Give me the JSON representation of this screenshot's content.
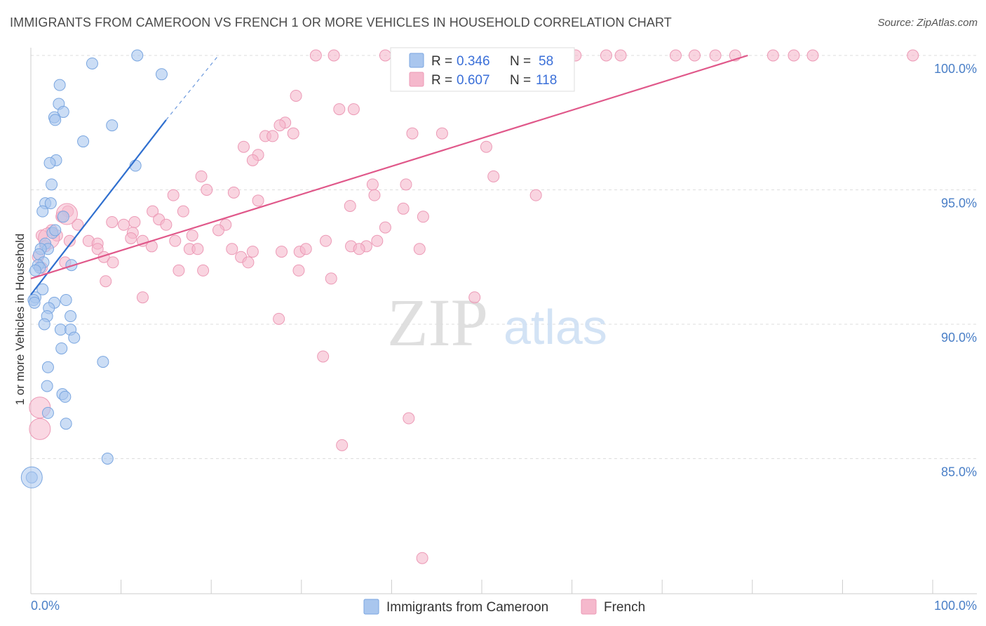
{
  "title": "IMMIGRANTS FROM CAMEROON VS FRENCH 1 OR MORE VEHICLES IN HOUSEHOLD CORRELATION CHART",
  "source": "Source: ZipAtlas.com",
  "watermark": {
    "zip": "ZIP",
    "atlas": "atlas"
  },
  "colors": {
    "blue_fill": "#a9c6ee",
    "blue_stroke": "#7aa6e0",
    "blue_line": "#2f6fcf",
    "pink_fill": "#f5b8cc",
    "pink_stroke": "#ec9ab6",
    "pink_line": "#e0588a",
    "grid": "#dddddd",
    "tick_label": "#4a7fc7"
  },
  "chart_data": {
    "type": "scatter",
    "title": "IMMIGRANTS FROM CAMEROON VS FRENCH 1 OR MORE VEHICLES IN HOUSEHOLD CORRELATION CHART",
    "xlabel": "",
    "ylabel": "1 or more Vehicles in Household",
    "xlim": [
      0,
      100
    ],
    "ylim": [
      80.5,
      100.8
    ],
    "y_ticks": [
      85.0,
      90.0,
      95.0,
      100.0
    ],
    "y_tick_labels": [
      "85.0%",
      "90.0%",
      "95.0%",
      "100.0%"
    ],
    "x_tick_labels": [
      "0.0%",
      "100.0%"
    ],
    "legend": {
      "rows": [
        {
          "r_label": "R =",
          "r_value": "0.346",
          "n_label": "N =",
          "n_value": "58"
        },
        {
          "r_label": "R =",
          "r_value": "0.607",
          "n_label": "N =",
          "n_value": "118"
        }
      ]
    },
    "series": [
      {
        "name": "Immigrants from Cameroon",
        "color": "#a9c6ee",
        "trend": {
          "x0": 0,
          "y0": 91.1,
          "x1": 15.0,
          "y1": 97.6,
          "dash_to_x": 20.8,
          "dash_to_y": 100.0
        },
        "points": [
          [
            11.8,
            100.0
          ],
          [
            6.8,
            99.7
          ],
          [
            14.5,
            99.3
          ],
          [
            3.2,
            98.9
          ],
          [
            3.1,
            98.2
          ],
          [
            3.6,
            97.9
          ],
          [
            2.6,
            97.7
          ],
          [
            2.7,
            97.6
          ],
          [
            9.0,
            97.4
          ],
          [
            5.8,
            96.8
          ],
          [
            2.8,
            96.1
          ],
          [
            2.1,
            96.0
          ],
          [
            11.6,
            95.9
          ],
          [
            2.3,
            95.2
          ],
          [
            1.6,
            94.5
          ],
          [
            2.2,
            94.5
          ],
          [
            1.3,
            94.2
          ],
          [
            3.6,
            94.0
          ],
          [
            2.4,
            93.4
          ],
          [
            2.7,
            93.5
          ],
          [
            1.6,
            93.0
          ],
          [
            1.9,
            92.8
          ],
          [
            1.1,
            92.8
          ],
          [
            0.9,
            92.6
          ],
          [
            1.4,
            92.3
          ],
          [
            0.8,
            92.2
          ],
          [
            4.5,
            92.2
          ],
          [
            1.0,
            92.1
          ],
          [
            0.5,
            92.0
          ],
          [
            1.3,
            91.3
          ],
          [
            0.5,
            91.0
          ],
          [
            0.3,
            90.9
          ],
          [
            0.4,
            90.8
          ],
          [
            2.6,
            90.8
          ],
          [
            3.9,
            90.9
          ],
          [
            2.0,
            90.6
          ],
          [
            1.8,
            90.3
          ],
          [
            4.4,
            90.3
          ],
          [
            1.5,
            90.0
          ],
          [
            3.3,
            89.8
          ],
          [
            4.4,
            89.8
          ],
          [
            4.8,
            89.5
          ],
          [
            3.4,
            89.1
          ],
          [
            8.0,
            88.6
          ],
          [
            1.9,
            88.4
          ],
          [
            1.8,
            87.7
          ],
          [
            3.5,
            87.4
          ],
          [
            3.8,
            87.3
          ],
          [
            1.9,
            86.7
          ],
          [
            3.9,
            86.3
          ],
          [
            8.5,
            85.0
          ],
          [
            0.1,
            84.3
          ]
        ],
        "large_points": [
          [
            0.1,
            84.3
          ]
        ]
      },
      {
        "name": "French",
        "color": "#f5b8cc",
        "trend": {
          "x0": 0,
          "y0": 91.7,
          "x1": 79.5,
          "y1": 100.0
        },
        "points": [
          [
            31.6,
            100.0
          ],
          [
            33.6,
            100.0
          ],
          [
            39.3,
            100.0
          ],
          [
            41.8,
            100.0
          ],
          [
            46.1,
            100.0
          ],
          [
            48.4,
            100.0
          ],
          [
            52.4,
            100.0
          ],
          [
            54.1,
            100.0
          ],
          [
            56.5,
            100.0
          ],
          [
            60.4,
            100.0
          ],
          [
            63.8,
            100.0
          ],
          [
            65.4,
            100.0
          ],
          [
            71.5,
            100.0
          ],
          [
            73.6,
            100.0
          ],
          [
            75.9,
            100.0
          ],
          [
            78.1,
            100.0
          ],
          [
            82.3,
            100.0
          ],
          [
            84.6,
            100.0
          ],
          [
            86.7,
            100.0
          ],
          [
            97.8,
            100.0
          ],
          [
            29.4,
            98.5
          ],
          [
            34.2,
            98.0
          ],
          [
            35.8,
            98.0
          ],
          [
            28.2,
            97.5
          ],
          [
            27.6,
            97.4
          ],
          [
            26.0,
            97.0
          ],
          [
            26.8,
            97.0
          ],
          [
            29.1,
            97.1
          ],
          [
            42.3,
            97.1
          ],
          [
            45.6,
            97.1
          ],
          [
            23.6,
            96.6
          ],
          [
            50.5,
            96.6
          ],
          [
            25.2,
            96.3
          ],
          [
            24.6,
            96.1
          ],
          [
            18.9,
            95.5
          ],
          [
            51.3,
            95.5
          ],
          [
            37.9,
            95.2
          ],
          [
            41.6,
            95.2
          ],
          [
            19.5,
            95.0
          ],
          [
            22.5,
            94.9
          ],
          [
            15.8,
            94.8
          ],
          [
            38.1,
            94.8
          ],
          [
            56.0,
            94.8
          ],
          [
            25.2,
            94.6
          ],
          [
            35.4,
            94.4
          ],
          [
            13.5,
            94.2
          ],
          [
            16.9,
            94.2
          ],
          [
            4.1,
            94.2
          ],
          [
            3.4,
            94.0
          ],
          [
            41.3,
            94.3
          ],
          [
            43.5,
            94.0
          ],
          [
            14.2,
            93.9
          ],
          [
            9.0,
            93.8
          ],
          [
            10.3,
            93.7
          ],
          [
            11.5,
            93.8
          ],
          [
            15.0,
            93.7
          ],
          [
            21.6,
            93.7
          ],
          [
            39.3,
            93.6
          ],
          [
            5.2,
            93.7
          ],
          [
            2.3,
            93.5
          ],
          [
            20.8,
            93.5
          ],
          [
            11.3,
            93.4
          ],
          [
            17.9,
            93.3
          ],
          [
            1.2,
            93.3
          ],
          [
            2.9,
            93.3
          ],
          [
            4.3,
            93.1
          ],
          [
            6.4,
            93.1
          ],
          [
            11.1,
            93.2
          ],
          [
            12.4,
            93.1
          ],
          [
            16.0,
            93.1
          ],
          [
            32.7,
            93.1
          ],
          [
            38.4,
            93.1
          ],
          [
            7.4,
            93.0
          ],
          [
            1.6,
            92.9
          ],
          [
            13.4,
            92.9
          ],
          [
            35.5,
            92.9
          ],
          [
            37.2,
            92.9
          ],
          [
            7.4,
            92.8
          ],
          [
            17.6,
            92.8
          ],
          [
            18.5,
            92.8
          ],
          [
            22.3,
            92.8
          ],
          [
            24.6,
            92.7
          ],
          [
            27.8,
            92.7
          ],
          [
            29.8,
            92.7
          ],
          [
            30.5,
            92.8
          ],
          [
            36.4,
            92.8
          ],
          [
            43.1,
            92.8
          ],
          [
            0.8,
            92.5
          ],
          [
            8.1,
            92.5
          ],
          [
            23.3,
            92.5
          ],
          [
            3.8,
            92.3
          ],
          [
            9.1,
            92.3
          ],
          [
            24.1,
            92.3
          ],
          [
            1.2,
            92.1
          ],
          [
            16.4,
            92.0
          ],
          [
            19.1,
            92.0
          ],
          [
            29.7,
            92.0
          ],
          [
            33.3,
            91.7
          ],
          [
            8.3,
            91.6
          ],
          [
            12.4,
            91.0
          ],
          [
            49.2,
            91.0
          ],
          [
            27.5,
            90.2
          ],
          [
            32.4,
            88.8
          ],
          [
            41.9,
            86.5
          ],
          [
            34.5,
            85.5
          ],
          [
            43.4,
            81.3
          ]
        ],
        "large_points": [
          [
            1.0,
            86.9
          ],
          [
            1.0,
            86.1
          ],
          [
            2.0,
            93.2
          ],
          [
            4.0,
            94.1
          ]
        ]
      }
    ]
  },
  "bottom_legend": [
    "Immigrants from Cameroon",
    "French"
  ]
}
